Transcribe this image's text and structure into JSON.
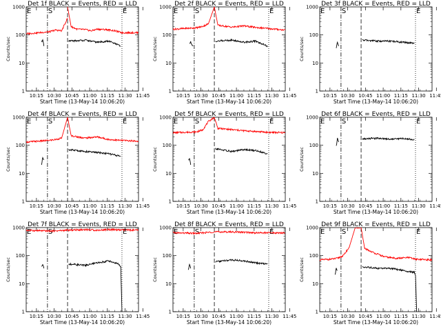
{
  "chart_data": {
    "type": "line",
    "layout": "3x3 grid",
    "x_ticks": [
      "10:15",
      "10:30",
      "10:45",
      "11:00",
      "11:15",
      "11:30",
      "11:45"
    ],
    "x_range_minutes": [
      0,
      95
    ],
    "y_scale": "log",
    "y_range": [
      1,
      1000
    ],
    "y_ticks": [
      "1",
      "10",
      "100",
      "1000"
    ],
    "ylabel": "Counts/sec",
    "xlabel": "Start Time (13-May-14 10:06:20)",
    "markers": [
      {
        "label": "S",
        "x": 18,
        "style": "dash-dot"
      },
      {
        "label": "",
        "x": 35,
        "style": "dashed"
      },
      {
        "label": "E",
        "x": 81,
        "style": "dotted"
      }
    ],
    "colors": {
      "events": "#000000",
      "lld": "#ff0000"
    },
    "panels": [
      {
        "title": "Det 1f BLACK = Events, RED = LLD",
        "events": [
          {
            "x": [
              13,
              14,
              15
            ],
            "y": [
              60,
              65,
              40
            ]
          },
          {
            "x": [
              36,
              50,
              60,
              70,
              80
            ],
            "y": [
              60,
              65,
              55,
              60,
              40
            ]
          }
        ],
        "lld": [
          {
            "x": [
              0,
              20,
              25,
              30,
              35
            ],
            "y": [
              110,
              130,
              150,
              140,
              400
            ]
          },
          {
            "x": [
              35,
              38,
              43,
              50,
              55,
              60,
              68,
              75,
              81,
              95
            ],
            "y": [
              1000,
              200,
              160,
              155,
              140,
              160,
              155,
              140,
              120,
              120
            ]
          }
        ]
      },
      {
        "title": "Det 2f BLACK = Events, RED = LLD",
        "events": [
          {
            "x": [
              14,
              15,
              17
            ],
            "y": [
              50,
              55,
              40
            ]
          },
          {
            "x": [
              36,
              50,
              60,
              70,
              80
            ],
            "y": [
              60,
              65,
              55,
              60,
              40
            ]
          }
        ],
        "lld": [
          {
            "x": [
              0,
              20,
              25,
              30,
              35
            ],
            "y": [
              160,
              180,
              200,
              250,
              1000
            ]
          },
          {
            "x": [
              35,
              38,
              50,
              60,
              70,
              80,
              95
            ],
            "y": [
              1000,
              220,
              190,
              210,
              185,
              170,
              150
            ]
          }
        ]
      },
      {
        "title": "Det 3f BLACK = Events, RED = LLD",
        "events": [
          {
            "x": [
              14,
              15,
              16
            ],
            "y": [
              35,
              55,
              40
            ]
          },
          {
            "x": [
              36,
              50,
              60,
              70,
              80
            ],
            "y": [
              65,
              60,
              60,
              55,
              50
            ]
          }
        ],
        "lld": []
      },
      {
        "title": "Det 4f BLACK = Events, RED = LLD",
        "events": [
          {
            "x": [
              13,
              14,
              15
            ],
            "y": [
              20,
              35,
              30
            ]
          },
          {
            "x": [
              36,
              50,
              60,
              70,
              80
            ],
            "y": [
              70,
              60,
              55,
              50,
              40
            ]
          }
        ],
        "lld": [
          {
            "x": [
              0,
              20,
              25,
              30,
              35
            ],
            "y": [
              130,
              150,
              160,
              180,
              1000
            ]
          },
          {
            "x": [
              35,
              38,
              43,
              50,
              60,
              70,
              80,
              95
            ],
            "y": [
              1000,
              220,
              200,
              180,
              200,
              160,
              150,
              140
            ]
          }
        ]
      },
      {
        "title": "Det 5f BLACK = Events, RED = LLD",
        "events": [
          {
            "x": [
              13,
              14,
              15
            ],
            "y": [
              30,
              35,
              20
            ]
          },
          {
            "x": [
              36,
              50,
              60,
              70,
              80
            ],
            "y": [
              75,
              60,
              70,
              65,
              50
            ]
          }
        ],
        "lld": [
          {
            "x": [
              0,
              20,
              25,
              30,
              35
            ],
            "y": [
              280,
              300,
              350,
              700,
              1000
            ]
          },
          {
            "x": [
              35,
              38,
              50,
              60,
              70,
              80,
              95
            ],
            "y": [
              1000,
              400,
              360,
              330,
              310,
              290,
              280
            ]
          }
        ]
      },
      {
        "title": "Det 6f BLACK = Events, RED = LLD",
        "events": [
          {
            "x": [
              14,
              15,
              16
            ],
            "y": [
              90,
              180,
              130
            ]
          },
          {
            "x": [
              36,
              50,
              60,
              70,
              80
            ],
            "y": [
              170,
              180,
              165,
              175,
              160
            ]
          }
        ],
        "lld": []
      },
      {
        "title": "Det 7f BLACK = Events, RED = LLD",
        "events": [
          {
            "x": [
              13,
              14,
              15
            ],
            "y": [
              40,
              45,
              35
            ]
          },
          {
            "x": [
              36,
              50,
              60,
              70,
              78,
              80,
              81
            ],
            "y": [
              50,
              45,
              55,
              65,
              50,
              40,
              1
            ]
          }
        ],
        "lld": [
          {
            "x": [
              0,
              20,
              35,
              50,
              60,
              70,
              80,
              95
            ],
            "y": [
              800,
              750,
              800,
              850,
              800,
              850,
              820,
              800
            ]
          }
        ]
      },
      {
        "title": "Det 8f BLACK = Events, RED = LLD",
        "events": [
          {
            "x": [
              13,
              14,
              15
            ],
            "y": [
              30,
              50,
              35
            ]
          },
          {
            "x": [
              36,
              50,
              60,
              70,
              80
            ],
            "y": [
              60,
              70,
              65,
              55,
              50
            ]
          }
        ],
        "lld": [
          {
            "x": [
              0,
              20,
              35,
              50,
              60,
              70,
              80,
              95
            ],
            "y": [
              650,
              620,
              700,
              700,
              680,
              650,
              650,
              640
            ]
          }
        ]
      },
      {
        "title": "Det 9f BLACK = Events, RED = LLD",
        "events": [
          {
            "x": [
              13,
              14,
              15
            ],
            "y": [
              20,
              35,
              30
            ]
          },
          {
            "x": [
              36,
              50,
              60,
              70,
              80,
              81,
              82
            ],
            "y": [
              40,
              35,
              35,
              30,
              25,
              20,
              1
            ]
          }
        ],
        "lld": [
          {
            "x": [
              0,
              10,
              15,
              20,
              25,
              30,
              35
            ],
            "y": [
              70,
              75,
              80,
              100,
              200,
              1000,
              1000
            ]
          },
          {
            "x": [
              35,
              38,
              45,
              55,
              65,
              75,
              81,
              95
            ],
            "y": [
              1000,
              180,
              130,
              90,
              80,
              85,
              75,
              70
            ]
          }
        ]
      }
    ]
  }
}
